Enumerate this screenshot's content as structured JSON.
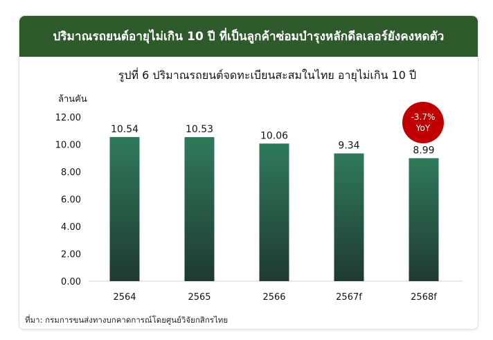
{
  "header": {
    "title": "ปริมาณรถยนต์อายุไม่เกิน 10 ปี ที่เป็นลูกค้าซ่อมบำรุงหลักดีลเลอร์ยังคงหดตัว"
  },
  "colors": {
    "header_bg": "#2f5a2c",
    "bar_top": "#2f7a5c",
    "bar_bottom": "#1f3a30",
    "badge_bg": "#c00000"
  },
  "badge": {
    "line1": "-3.7%",
    "line2": "YoY"
  },
  "source": {
    "text": "ที่มา: กรมการขนส่งทางบกคาดการณ์โดยศูนย์วิจัยกสิกรไทย"
  },
  "chart_data": {
    "type": "bar",
    "title": "รูปที่ 6 ปริมาณรถยนต์จดทะเบียนสะสมในไทย อายุไม่เกิน 10 ปี",
    "ylabel": "ล้านคัน",
    "xlabel": "",
    "categories": [
      "2564",
      "2565",
      "2566",
      "2567f",
      "2568f"
    ],
    "values": [
      10.54,
      10.53,
      10.06,
      9.34,
      8.99
    ],
    "value_labels": [
      "10.54",
      "10.53",
      "10.06",
      "9.34",
      "8.99"
    ],
    "ylim": [
      0,
      12
    ],
    "yticks": [
      "0.00",
      "2.00",
      "4.00",
      "6.00",
      "8.00",
      "10.00",
      "12.00"
    ],
    "grid": false,
    "legend": "none"
  }
}
